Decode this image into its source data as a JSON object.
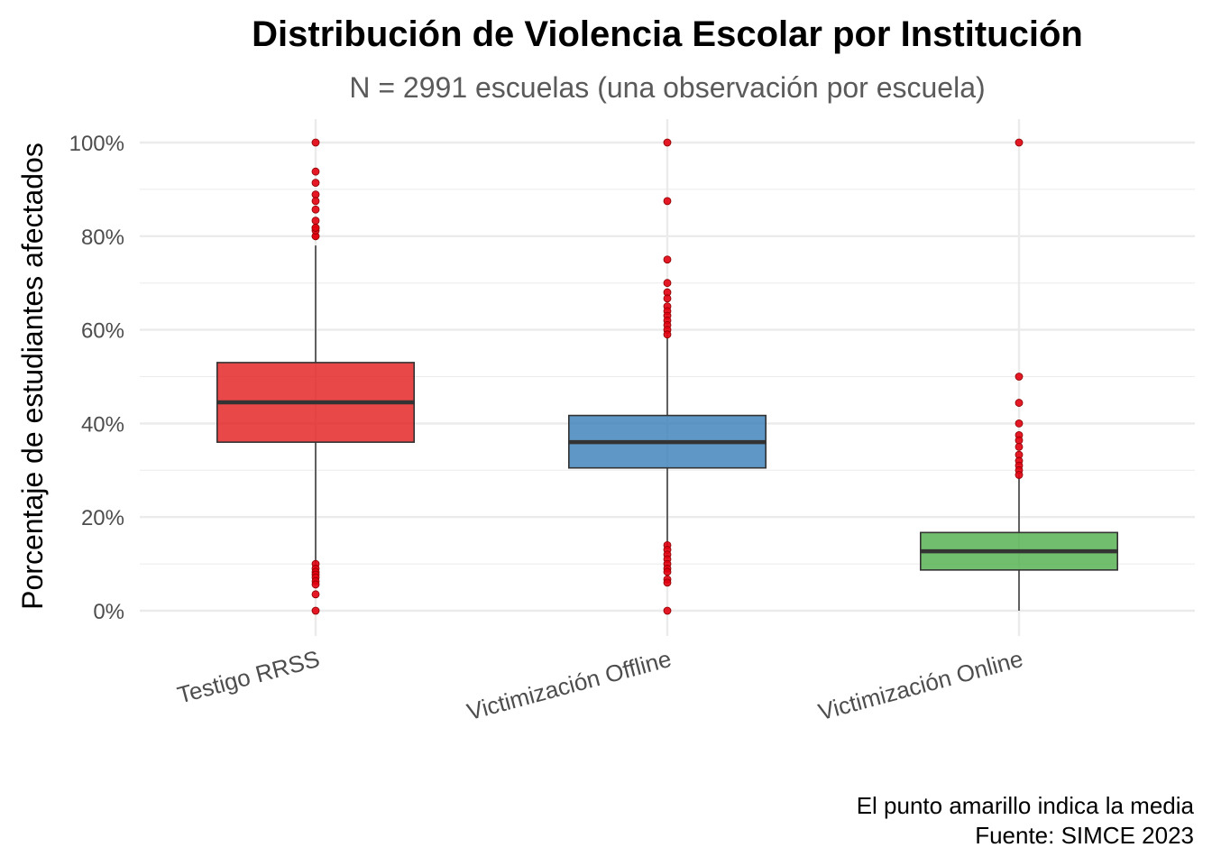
{
  "chart_data": {
    "type": "boxplot",
    "title": "Distribución de Violencia Escolar por Institución",
    "subtitle": "N = 2991 escuelas (una observación por escuela)",
    "xlabel": "",
    "ylabel": "Porcentaje de estudiantes afectados",
    "caption_lines": [
      "El punto amarillo indica la media",
      "Fuente: SIMCE 2023"
    ],
    "ylim": [
      -0.05,
      1.05
    ],
    "y_ticks": [
      0,
      0.2,
      0.4,
      0.6,
      0.8,
      1.0
    ],
    "y_tick_labels": [
      "0%",
      "20%",
      "40%",
      "60%",
      "80%",
      "100%"
    ],
    "grid": true,
    "legend": "none",
    "categories": [
      "Testigo RRSS",
      "Victimización Offline",
      "Victimización Online"
    ],
    "outlier_color": "#e3000f",
    "median_color": "#333333",
    "series": [
      {
        "category": "Testigo RRSS",
        "color": "#e41a1c",
        "q1": 0.36,
        "median": 0.445,
        "q3": 0.53,
        "whisker_low": 0.1,
        "whisker_high": 0.78,
        "outliers": [
          1.0,
          0.938,
          0.914,
          0.889,
          0.875,
          0.857,
          0.833,
          0.818,
          0.8,
          0.8,
          0.812,
          0.818,
          0.1,
          0.09,
          0.083,
          0.077,
          0.071,
          0.063,
          0.056,
          0.035,
          0.0
        ]
      },
      {
        "category": "Victimización Offline",
        "color": "#377eb8",
        "q1": 0.305,
        "median": 0.36,
        "q3": 0.417,
        "whisker_low": 0.14,
        "whisker_high": 0.59,
        "outliers": [
          1.0,
          0.875,
          0.75,
          0.7,
          0.68,
          0.667,
          0.65,
          0.64,
          0.63,
          0.62,
          0.61,
          0.6,
          0.59,
          0.14,
          0.13,
          0.12,
          0.11,
          0.1,
          0.09,
          0.083,
          0.067,
          0.06,
          0.0
        ]
      },
      {
        "category": "Victimización Online",
        "color": "#4daf4a",
        "q1": 0.087,
        "median": 0.127,
        "q3": 0.167,
        "whisker_low": 0.0,
        "whisker_high": 0.29,
        "outliers": [
          1.0,
          0.5,
          0.444,
          0.4,
          0.375,
          0.364,
          0.35,
          0.333,
          0.32,
          0.31,
          0.3,
          0.29
        ]
      }
    ]
  }
}
